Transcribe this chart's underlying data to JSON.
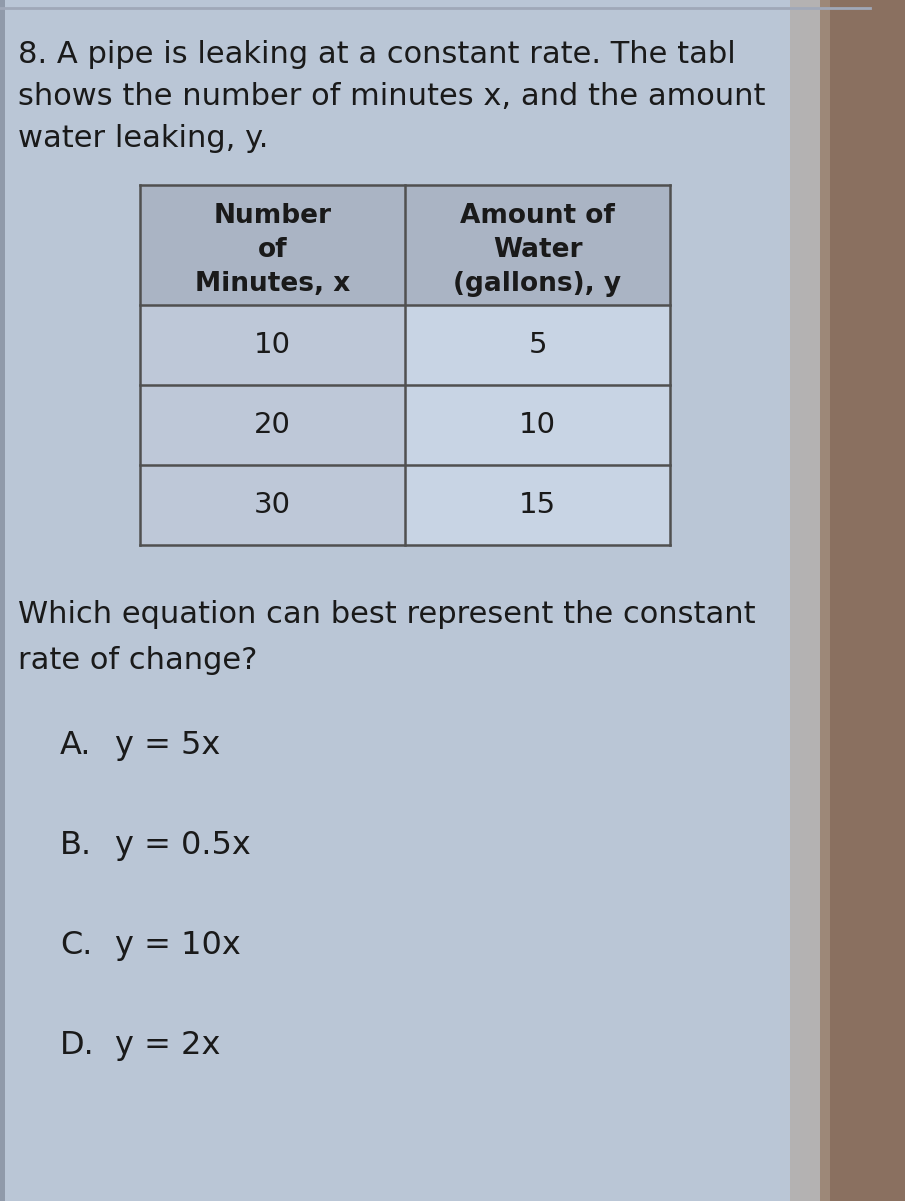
{
  "question_number": "8.",
  "question_text_line1": "A pipe is leaking at a constant rate. The tabl",
  "question_text_line2": "shows the number of minutes x, and the amount",
  "question_text_line3": "water leaking, y.",
  "col1_header_line1": "Number",
  "col1_header_line2": "of",
  "col1_header_line3": "Minutes, x",
  "col2_header_line1": "Amount of",
  "col2_header_line2": "Water",
  "col2_header_line3": "(gallons), y",
  "table_data": [
    [
      "10",
      "5"
    ],
    [
      "20",
      "10"
    ],
    [
      "30",
      "15"
    ]
  ],
  "sub_question_line1": "Which equation can best represent the constant",
  "sub_question_line2": "rate of change?",
  "choices": [
    [
      "A.",
      "y = 5x"
    ],
    [
      "B.",
      "y = 0.5x"
    ],
    [
      "C.",
      "y = 10x"
    ],
    [
      "D.",
      "y = 2x"
    ]
  ],
  "page_bg": "#b8c4d4",
  "content_bg": "#c8d4e4",
  "table_header_bg": "#b0bccf",
  "table_row_bg_left": "#c0ccd e",
  "table_row_bg_right": "#ccd8e8",
  "table_border_color": "#505050",
  "text_color": "#1a1a1a",
  "right_shadow_color": "#7a8898",
  "top_border_color": "#888888",
  "left_border_color": "#909090"
}
